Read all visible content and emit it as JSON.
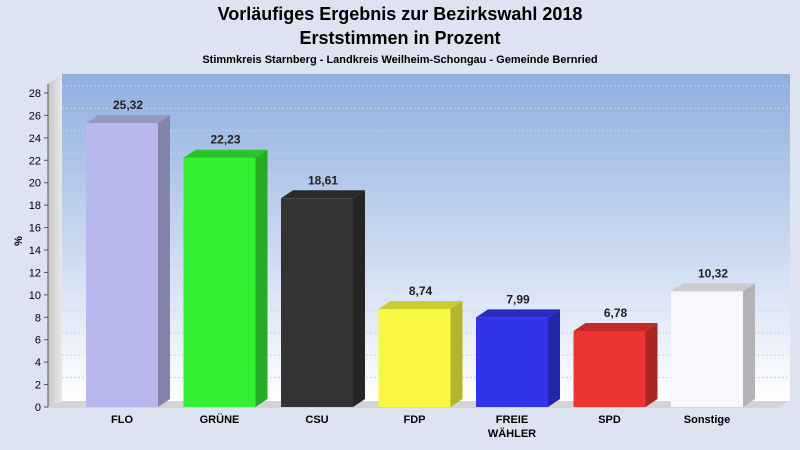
{
  "chart_data": {
    "type": "bar",
    "title_line1": "Vorläufiges Ergebnis zur Bezirkswahl 2018",
    "title_line2": "Erststimmen in Prozent",
    "subtitle": "Stimmkreis Starnberg - Landkreis Weilheim-Schongau - Gemeinde Bernried",
    "ylabel": "%",
    "ylim": [
      0,
      28
    ],
    "yticks": [
      0,
      2,
      4,
      6,
      8,
      10,
      12,
      14,
      16,
      18,
      20,
      22,
      24,
      26,
      28
    ],
    "grid": true,
    "categories": [
      "FLO",
      "GRÜNE",
      "CSU",
      "FDP",
      "FREIE\nWÄHLER",
      "SPD",
      "Sonstige"
    ],
    "values": [
      25.32,
      22.23,
      18.61,
      8.74,
      7.99,
      6.78,
      10.32
    ],
    "value_labels": [
      "25,32",
      "22,23",
      "18,61",
      "8,74",
      "7,99",
      "6,78",
      "10,32"
    ],
    "colors": [
      "#b8b8ee",
      "#33ee33",
      "#333333",
      "#f8f840",
      "#3333ee",
      "#ee3333",
      "#f8f8fc"
    ]
  }
}
